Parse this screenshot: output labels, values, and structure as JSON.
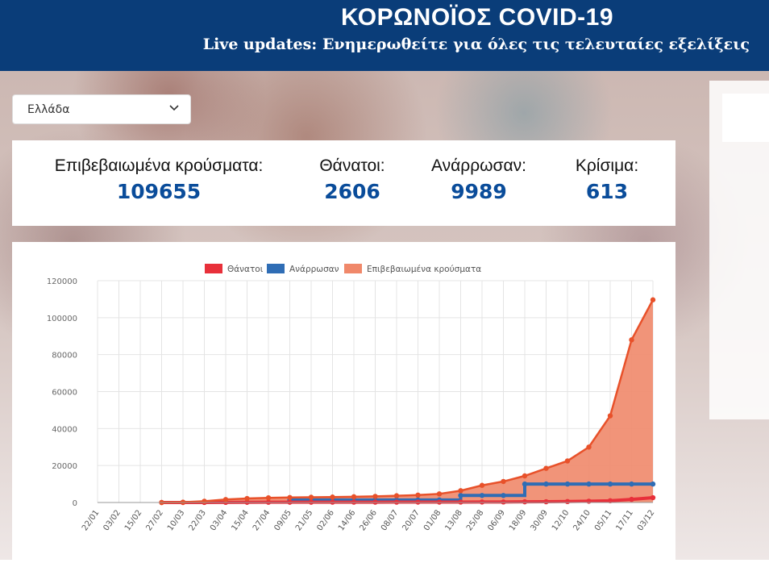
{
  "header": {
    "title": "ΚΟΡΩΝΟΪΟΣ COVID-19",
    "subtitle": "Live updates: Ενημερωθείτε για όλες τις τελευταίες εξελίξεις"
  },
  "country_select": {
    "value": "Ελλάδα",
    "icon": "chevron-down-icon"
  },
  "stats": [
    {
      "label": "Επιβεβαιωμένα κρούσματα:",
      "value": "109655"
    },
    {
      "label": "Θάνατοι:",
      "value": "2606"
    },
    {
      "label": "Ανάρρωσαν:",
      "value": "9989"
    },
    {
      "label": "Κρίσιμα:",
      "value": "613"
    }
  ],
  "colors": {
    "header": "#0a3d79",
    "stat_value": "#0a4c9a",
    "deaths": "#e8303a",
    "recovered": "#2f6db5",
    "confirmed_fill": "#f0886a",
    "confirmed_line": "#e8512a"
  },
  "chart_data": {
    "type": "area",
    "legend_position": "top",
    "grid": true,
    "ylim": [
      0,
      120000
    ],
    "y_ticks": [
      "0",
      "20000",
      "40000",
      "60000",
      "80000",
      "100000",
      "120000"
    ],
    "x_ticks": [
      "22/01",
      "03/02",
      "15/02",
      "27/02",
      "10/03",
      "22/03",
      "03/04",
      "15/04",
      "27/04",
      "09/05",
      "21/05",
      "02/06",
      "14/06",
      "26/06",
      "08/07",
      "20/07",
      "01/08",
      "13/08",
      "25/08",
      "06/09",
      "18/09",
      "30/09",
      "12/10",
      "24/10",
      "05/11",
      "17/11",
      "03/12"
    ],
    "x": [
      "22/01",
      "03/02",
      "15/02",
      "27/02",
      "10/03",
      "22/03",
      "03/04",
      "15/04",
      "27/04",
      "09/05",
      "21/05",
      "02/06",
      "14/06",
      "26/06",
      "08/07",
      "20/07",
      "01/08",
      "13/08",
      "25/08",
      "06/09",
      "18/09",
      "30/09",
      "12/10",
      "24/10",
      "05/11",
      "17/11",
      "03/12"
    ],
    "series": [
      {
        "name": "Θάνατοι",
        "values": [
          null,
          null,
          null,
          0,
          1,
          20,
          70,
          100,
          140,
          150,
          160,
          175,
          180,
          190,
          195,
          200,
          210,
          230,
          270,
          290,
          380,
          410,
          520,
          700,
          950,
          1700,
          2606
        ]
      },
      {
        "name": "Ανάρρωσαν",
        "values": [
          null,
          null,
          null,
          null,
          null,
          null,
          null,
          null,
          null,
          1374,
          1374,
          1374,
          1374,
          1374,
          1374,
          1374,
          1374,
          3804,
          3804,
          3804,
          9989,
          9989,
          9989,
          9989,
          9989,
          9989,
          9989
        ]
      },
      {
        "name": "Επιβεβαιωμένα κρούσματα",
        "values": [
          null,
          null,
          null,
          3,
          190,
          695,
          1613,
          2170,
          2534,
          2710,
          2853,
          2952,
          3121,
          3310,
          3672,
          4012,
          4662,
          6381,
          9280,
          11386,
          14400,
          18475,
          22500,
          29992,
          46892,
          88000,
          109655
        ]
      }
    ]
  }
}
